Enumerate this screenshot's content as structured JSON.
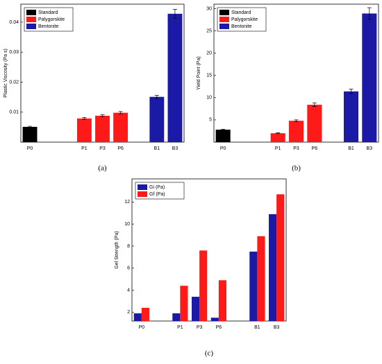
{
  "chart_data": [
    {
      "type": "bar",
      "caption": "(a)",
      "ylabel": "Plastic Viscosity (Pa s)",
      "categories": [
        "P0",
        null,
        null,
        "P1",
        "P3",
        "P6",
        null,
        "B1",
        "B3"
      ],
      "series": [
        {
          "name": "Standard",
          "color": "#000000",
          "values": [
            0.0051,
            null,
            null,
            null,
            null,
            null,
            null,
            null,
            null
          ],
          "errors": [
            0.0002,
            null,
            null,
            null,
            null,
            null,
            null,
            null,
            null
          ]
        },
        {
          "name": "Palygorskite",
          "color": "#ff1a1a",
          "values": [
            null,
            null,
            null,
            0.0079,
            0.0088,
            0.0098,
            null,
            null,
            null
          ],
          "errors": [
            null,
            null,
            null,
            0.0003,
            0.0003,
            0.0004,
            null,
            null,
            null
          ]
        },
        {
          "name": "Bentonite",
          "color": "#1a1aa6",
          "values": [
            null,
            null,
            null,
            null,
            null,
            null,
            null,
            0.0151,
            0.0428
          ],
          "errors": [
            null,
            null,
            null,
            null,
            null,
            null,
            null,
            0.0005,
            0.0015
          ]
        }
      ],
      "ylim": [
        0,
        0.046
      ],
      "yticks": [
        0.01,
        0.02,
        0.03,
        0.04
      ],
      "legend": "upper left"
    },
    {
      "type": "bar",
      "caption": "(b)",
      "ylabel": "Yield Point (Pa)",
      "categories": [
        "P0",
        null,
        null,
        "P1",
        "P3",
        "P6",
        null,
        "B1",
        "B3"
      ],
      "series": [
        {
          "name": "Standard",
          "color": "#000000",
          "values": [
            2.8,
            null,
            null,
            null,
            null,
            null,
            null,
            null,
            null
          ],
          "errors": [
            0.1,
            null,
            null,
            null,
            null,
            null,
            null,
            null,
            null
          ]
        },
        {
          "name": "Palygorskite",
          "color": "#ff1a1a",
          "values": [
            null,
            null,
            null,
            2.0,
            4.8,
            8.4,
            null,
            null,
            null
          ],
          "errors": [
            null,
            null,
            null,
            0.1,
            0.2,
            0.4,
            null,
            null,
            null
          ]
        },
        {
          "name": "Bentonite",
          "color": "#1a1aa6",
          "values": [
            null,
            null,
            null,
            null,
            null,
            null,
            null,
            11.4,
            28.9
          ],
          "errors": [
            null,
            null,
            null,
            null,
            null,
            null,
            null,
            0.5,
            1.3
          ]
        }
      ],
      "ylim": [
        0,
        31
      ],
      "yticks": [
        5,
        10,
        15,
        20,
        25,
        30
      ],
      "legend": "upper left"
    },
    {
      "type": "bar",
      "caption": "(c)",
      "ylabel": "Gel Strength (Pa)",
      "categories": [
        "P0",
        null,
        "P1",
        "P3",
        "P6",
        null,
        "B1",
        "B3"
      ],
      "series": [
        {
          "name": "Gi (Pa)",
          "color": "#1a1aa6",
          "values": [
            1.9,
            null,
            1.9,
            3.4,
            1.5,
            null,
            7.5,
            10.9
          ]
        },
        {
          "name": "Gf (Pa)",
          "color": "#ff1a1a",
          "values": [
            2.4,
            null,
            4.4,
            7.6,
            4.9,
            null,
            8.9,
            12.7
          ]
        }
      ],
      "ylim": [
        1.2,
        14.1
      ],
      "yticks": [
        2,
        4,
        6,
        8,
        10,
        12
      ],
      "legend": "upper left"
    }
  ]
}
